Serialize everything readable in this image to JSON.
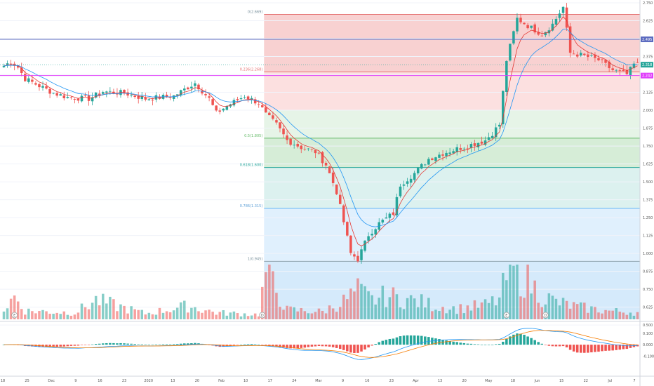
{
  "chart_data": {
    "type": "candlestick",
    "colors": {
      "up": "#26a69a",
      "down": "#ef5350",
      "ema_fast": "#e53935",
      "ema_slow": "#2196f3",
      "macd": "#2196f3",
      "signal": "#f57c00",
      "fib_0": "#ef9a9a",
      "fib_236": "#f8bbbb",
      "fib_382": "#c8e6c9",
      "fib_5": "#a5d6a7",
      "fib_618": "#b2dfdb",
      "fib_786": "#bbdefb",
      "fib_1": "#cfd8dc",
      "fib_ext": "#b3d9f7",
      "resistance": "#5c6bc0",
      "support": "#e040fb",
      "current": "#26a69a"
    },
    "price_axis": {
      "ylim": [
        0.54,
        2.75
      ],
      "ticks": [
        "2.750",
        "2.625",
        "2.500",
        "2.375",
        "2.250",
        "2.125",
        "2.000",
        "1.875",
        "1.750",
        "1.625",
        "1.500",
        "1.375",
        "1.250",
        "1.125",
        "1.000",
        "0.875",
        "0.750",
        "0.625",
        "0.500"
      ],
      "tick_values": [
        2.75,
        2.625,
        2.5,
        2.375,
        2.25,
        2.125,
        2.0,
        1.875,
        1.75,
        1.625,
        1.5,
        1.375,
        1.25,
        1.125,
        1.0,
        0.875,
        0.75,
        0.625,
        0.5
      ]
    },
    "macd_axis": {
      "ylim": [
        -0.24,
        0.18
      ],
      "ticks": [
        "0.100",
        "0.000",
        "-0.100"
      ],
      "tick_values": [
        0.1,
        0.0,
        -0.1
      ]
    },
    "x_ticks": [
      "18",
      "25",
      "Dec",
      "9",
      "16",
      "23",
      "2020",
      "13",
      "20",
      "Feb",
      "10",
      "17",
      "24",
      "Mar",
      "9",
      "16",
      "23",
      "Apr",
      "13",
      "20",
      "May",
      "18",
      "Jun",
      "15",
      "22",
      "Jul",
      "7"
    ],
    "fib_levels": [
      {
        "label": "0(2.669)",
        "value": 2.669
      },
      {
        "label": "0.236(2.268)",
        "value": 2.268
      },
      {
        "label": "0.5(1.805)",
        "value": 1.805
      },
      {
        "label": "0.618(1.600)",
        "value": 1.6
      },
      {
        "label": "0.786(1.315)",
        "value": 1.315
      },
      {
        "label": "1(0.945)",
        "value": 0.945
      }
    ],
    "horizontal_lines": [
      {
        "name": "resistance",
        "value": 2.495,
        "label": "2.495"
      },
      {
        "name": "support",
        "value": 2.242,
        "label": "2.242"
      }
    ],
    "last_price": {
      "value": 2.318,
      "label": "2.318"
    },
    "event_markers": [
      {
        "symbol": "E",
        "index": 3
      },
      {
        "symbol": "D",
        "index": 73
      },
      {
        "symbol": "E",
        "index": 142
      },
      {
        "symbol": "D",
        "index": 153
      }
    ],
    "ohlc_key_points": [
      [
        0,
        2.31
      ],
      [
        2,
        2.34
      ],
      [
        4,
        2.3
      ],
      [
        6,
        2.22
      ],
      [
        10,
        2.17
      ],
      [
        14,
        2.12
      ],
      [
        18,
        2.09
      ],
      [
        24,
        2.08
      ],
      [
        28,
        2.13
      ],
      [
        34,
        2.12
      ],
      [
        40,
        2.08
      ],
      [
        48,
        2.1
      ],
      [
        54,
        2.19
      ],
      [
        58,
        2.08
      ],
      [
        60,
        1.98
      ],
      [
        63,
        2.03
      ],
      [
        68,
        2.1
      ],
      [
        72,
        2.05
      ],
      [
        74,
        1.97
      ],
      [
        77,
        1.9
      ],
      [
        80,
        1.79
      ],
      [
        84,
        1.74
      ],
      [
        88,
        1.71
      ],
      [
        91,
        1.62
      ],
      [
        94,
        1.43
      ],
      [
        96,
        1.22
      ],
      [
        98,
        1.0
      ],
      [
        100,
        0.96
      ],
      [
        103,
        1.13
      ],
      [
        106,
        1.21
      ],
      [
        110,
        1.28
      ],
      [
        112,
        1.48
      ],
      [
        116,
        1.56
      ],
      [
        120,
        1.66
      ],
      [
        124,
        1.7
      ],
      [
        128,
        1.73
      ],
      [
        132,
        1.76
      ],
      [
        136,
        1.79
      ],
      [
        138,
        1.84
      ],
      [
        140,
        1.9
      ],
      [
        142,
        2.35
      ],
      [
        145,
        2.64
      ],
      [
        148,
        2.59
      ],
      [
        152,
        2.53
      ],
      [
        155,
        2.6
      ],
      [
        158,
        2.72
      ],
      [
        160,
        2.4
      ],
      [
        164,
        2.38
      ],
      [
        168,
        2.35
      ],
      [
        172,
        2.28
      ],
      [
        176,
        2.25
      ],
      [
        178,
        2.32
      ]
    ],
    "n_candles": 180,
    "volume_key_points": [
      [
        0,
        20
      ],
      [
        3,
        48
      ],
      [
        6,
        18
      ],
      [
        20,
        14
      ],
      [
        26,
        40
      ],
      [
        40,
        12
      ],
      [
        52,
        28
      ],
      [
        60,
        14
      ],
      [
        72,
        10
      ],
      [
        74,
        100
      ],
      [
        80,
        20
      ],
      [
        90,
        16
      ],
      [
        96,
        38
      ],
      [
        100,
        60
      ],
      [
        104,
        40
      ],
      [
        108,
        50
      ],
      [
        112,
        44
      ],
      [
        118,
        36
      ],
      [
        122,
        28
      ],
      [
        128,
        22
      ],
      [
        136,
        30
      ],
      [
        140,
        42
      ],
      [
        143,
        112
      ],
      [
        145,
        96
      ],
      [
        148,
        80
      ],
      [
        152,
        50
      ],
      [
        156,
        36
      ],
      [
        162,
        26
      ],
      [
        170,
        18
      ],
      [
        176,
        16
      ],
      [
        179,
        14
      ]
    ],
    "volume_range": [
      0,
      115
    ]
  }
}
